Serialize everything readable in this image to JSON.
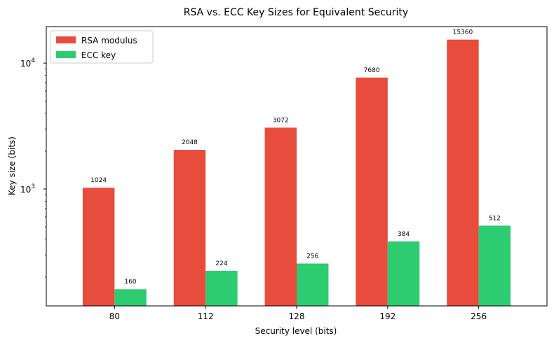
{
  "chart_data": {
    "type": "bar",
    "title": "RSA vs. ECC Key Sizes for Equivalent Security",
    "xlabel": "Security level (bits)",
    "ylabel": "Key size (bits)",
    "yscale": "log",
    "ylim": [
      118,
      19500
    ],
    "y_ticks": [
      1000,
      10000
    ],
    "categories": [
      "80",
      "112",
      "128",
      "192",
      "256"
    ],
    "series": [
      {
        "name": "RSA modulus",
        "color": "#e74c3c",
        "values": [
          1024,
          2048,
          3072,
          7680,
          15360
        ]
      },
      {
        "name": "ECC key",
        "color": "#2ecc71",
        "values": [
          160,
          224,
          256,
          384,
          512
        ]
      }
    ],
    "legend": {
      "position": "upper-left"
    },
    "grid": false
  }
}
